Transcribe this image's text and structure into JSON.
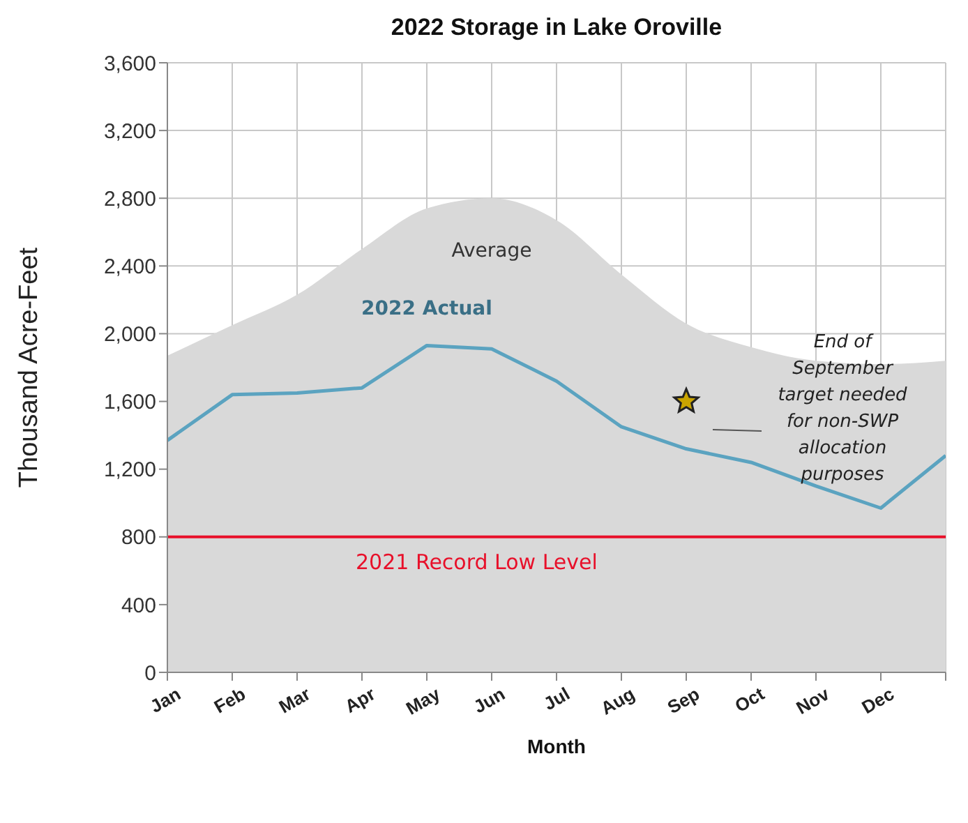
{
  "chart_data": {
    "type": "line",
    "title": "2022 Storage in Lake Oroville",
    "xlabel": "Month",
    "ylabel": "Thousand Acre-Feet",
    "categories": [
      "Jan",
      "Feb",
      "Mar",
      "Apr",
      "May",
      "Jun",
      "Jul",
      "Aug",
      "Sep",
      "Oct",
      "Nov",
      "Dec",
      null
    ],
    "series": [
      {
        "type": "area",
        "name": "Average",
        "color": "#d9d9d9",
        "values": [
          1870,
          2050,
          2230,
          2500,
          2740,
          2800,
          2670,
          2350,
          2060,
          1920,
          1840,
          1820,
          1840
        ]
      },
      {
        "name": "2022 Actual",
        "color": "#5ba3c0",
        "values": [
          1370,
          1640,
          1650,
          1680,
          1930,
          1910,
          1720,
          1450,
          1320,
          1240,
          1100,
          970,
          1280
        ]
      },
      {
        "type": "scatter",
        "color": "#c9a400",
        "marker": "star",
        "values": [
          null,
          null,
          null,
          null,
          null,
          null,
          null,
          null,
          1600,
          null,
          null,
          null,
          null
        ]
      }
    ],
    "ylim": [
      0,
      3600
    ],
    "yticks": [
      0,
      400,
      800,
      {
        "value": 1200,
        "label": "1,200"
      },
      {
        "value": 1600,
        "label": "1,600"
      },
      {
        "value": 2000,
        "label": "2,000"
      },
      {
        "value": 2400,
        "label": "2,400"
      },
      {
        "value": 2800,
        "label": "2,800"
      },
      {
        "value": 3200,
        "label": "3,200"
      },
      {
        "value": 3600,
        "label": "3,600"
      }
    ],
    "ref_lines": [
      {
        "axis": "y",
        "value": 800,
        "label": "2021 Record Low Level",
        "color": "#e8102a"
      }
    ],
    "annotations": [
      "End of September target needed for non-SWP allocation purposes"
    ],
    "grid": true,
    "legend": false
  }
}
